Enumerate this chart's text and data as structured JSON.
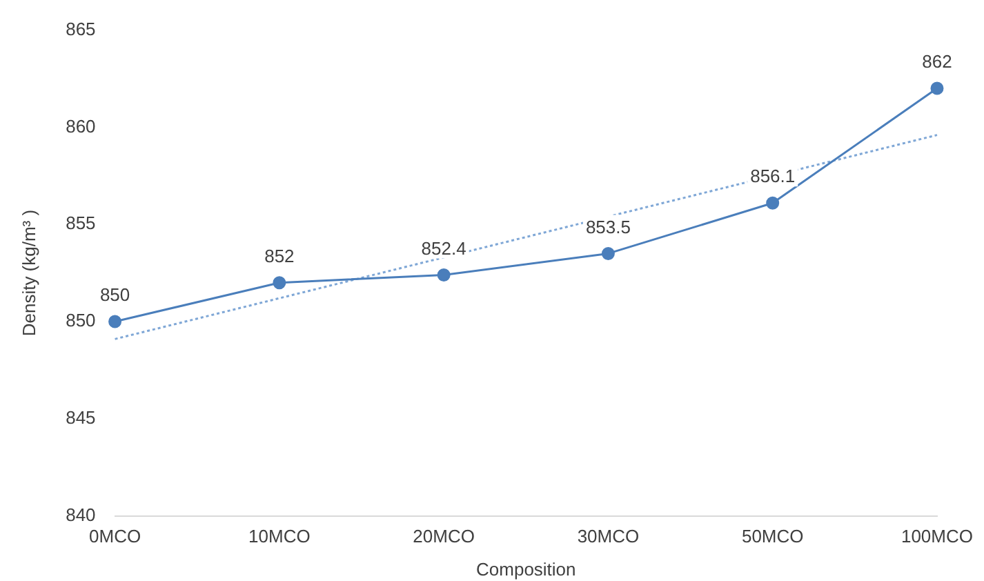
{
  "chart_data": {
    "type": "line",
    "xlabel": "Composition",
    "ylabel": "Density (kg/m³ )",
    "categories": [
      "0MCO",
      "10MCO",
      "20MCO",
      "30MCO",
      "50MCO",
      "100MCO"
    ],
    "series": [
      {
        "color": "#4a7ebb",
        "values": [
          850,
          852,
          852.4,
          853.5,
          856.1,
          862
        ],
        "value_labels": [
          "850",
          "852",
          "852.4",
          "853.5",
          "856.1",
          "862"
        ],
        "marker": "circle",
        "line_style": "solid"
      },
      {
        "type": "line",
        "color": "#7fa7d6",
        "x": [
          "0MCO",
          "100MCO"
        ],
        "values": [
          849.1,
          859.6
        ],
        "marker": "none",
        "line_style": "dotted"
      }
    ],
    "ylim": [
      840,
      865
    ],
    "yticks": [
      840,
      845,
      850,
      855,
      860,
      865
    ],
    "grid": false,
    "legend": false
  }
}
